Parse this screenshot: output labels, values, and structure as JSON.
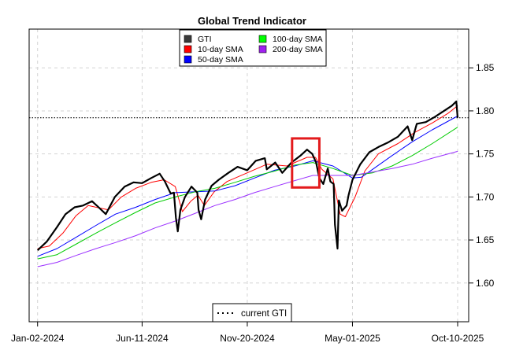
{
  "chart_data": {
    "type": "line",
    "title": "Global Trend Indicator",
    "xlabel": "",
    "ylabel": "",
    "x_range": [
      "2023-12-20",
      "2025-10-27"
    ],
    "ylim": [
      1.555,
      1.895
    ],
    "x_ticks": [
      {
        "date": "2024-01-02",
        "label": "Jan-02-2024"
      },
      {
        "date": "2024-06-11",
        "label": "Jun-11-2024"
      },
      {
        "date": "2024-11-20",
        "label": "Nov-20-2024"
      },
      {
        "date": "2025-05-01",
        "label": "May-01-2025"
      },
      {
        "date": "2025-10-10",
        "label": "Oct-10-2025"
      }
    ],
    "y_ticks": [
      {
        "value": 1.6,
        "label": "1.60"
      },
      {
        "value": 1.65,
        "label": "1.65"
      },
      {
        "value": 1.7,
        "label": "1.70"
      },
      {
        "value": 1.75,
        "label": "1.75"
      },
      {
        "value": 1.8,
        "label": "1.80"
      },
      {
        "value": 1.85,
        "label": "1.85"
      }
    ],
    "grid": true,
    "grid_style": "dashed-lightgray",
    "reference_line": {
      "value": 1.792,
      "label": "current GTI",
      "style": "dotted",
      "color": "#000000"
    },
    "highlight_box": {
      "x_start": "2025-01-28",
      "x_end": "2025-03-11",
      "y_low": 1.711,
      "y_high": 1.768,
      "color": "#e31a1c"
    },
    "legend_position": "top",
    "series": [
      {
        "name": "GTI",
        "color": "#000000",
        "legend_color": "#3a3a3a",
        "width": 2.2,
        "points": [
          [
            "2024-01-02",
            1.638
          ],
          [
            "2024-01-16",
            1.648
          ],
          [
            "2024-02-01",
            1.665
          ],
          [
            "2024-02-14",
            1.68
          ],
          [
            "2024-02-28",
            1.688
          ],
          [
            "2024-03-12",
            1.69
          ],
          [
            "2024-03-26",
            1.695
          ],
          [
            "2024-04-05",
            1.688
          ],
          [
            "2024-04-16",
            1.68
          ],
          [
            "2024-04-30",
            1.7
          ],
          [
            "2024-05-15",
            1.712
          ],
          [
            "2024-05-29",
            1.717
          ],
          [
            "2024-06-11",
            1.716
          ],
          [
            "2024-06-25",
            1.722
          ],
          [
            "2024-07-08",
            1.727
          ],
          [
            "2024-07-16",
            1.718
          ],
          [
            "2024-07-25",
            1.704
          ],
          [
            "2024-07-30",
            1.705
          ],
          [
            "2024-08-02",
            1.676
          ],
          [
            "2024-08-05",
            1.66
          ],
          [
            "2024-08-09",
            1.685
          ],
          [
            "2024-08-16",
            1.7
          ],
          [
            "2024-08-26",
            1.712
          ],
          [
            "2024-09-04",
            1.705
          ],
          [
            "2024-09-06",
            1.685
          ],
          [
            "2024-09-10",
            1.674
          ],
          [
            "2024-09-16",
            1.697
          ],
          [
            "2024-09-26",
            1.713
          ],
          [
            "2024-10-07",
            1.72
          ],
          [
            "2024-10-22",
            1.728
          ],
          [
            "2024-11-05",
            1.735
          ],
          [
            "2024-11-20",
            1.731
          ],
          [
            "2024-12-03",
            1.742
          ],
          [
            "2024-12-17",
            1.745
          ],
          [
            "2024-12-20",
            1.732
          ],
          [
            "2025-01-02",
            1.74
          ],
          [
            "2025-01-13",
            1.728
          ],
          [
            "2025-01-27",
            1.74
          ],
          [
            "2025-02-10",
            1.748
          ],
          [
            "2025-02-20",
            1.755
          ],
          [
            "2025-02-28",
            1.75
          ],
          [
            "2025-03-06",
            1.74
          ],
          [
            "2025-03-11",
            1.722
          ],
          [
            "2025-03-17",
            1.715
          ],
          [
            "2025-03-24",
            1.733
          ],
          [
            "2025-03-28",
            1.718
          ],
          [
            "2025-04-02",
            1.715
          ],
          [
            "2025-04-04",
            1.668
          ],
          [
            "2025-04-08",
            1.64
          ],
          [
            "2025-04-10",
            1.696
          ],
          [
            "2025-04-15",
            1.684
          ],
          [
            "2025-04-22",
            1.69
          ],
          [
            "2025-04-25",
            1.702
          ],
          [
            "2025-05-01",
            1.72
          ],
          [
            "2025-05-13",
            1.738
          ],
          [
            "2025-05-27",
            1.752
          ],
          [
            "2025-06-10",
            1.758
          ],
          [
            "2025-06-24",
            1.763
          ],
          [
            "2025-07-10",
            1.77
          ],
          [
            "2025-07-25",
            1.782
          ],
          [
            "2025-08-01",
            1.766
          ],
          [
            "2025-08-08",
            1.785
          ],
          [
            "2025-08-22",
            1.787
          ],
          [
            "2025-09-05",
            1.793
          ],
          [
            "2025-09-19",
            1.8
          ],
          [
            "2025-10-01",
            1.806
          ],
          [
            "2025-10-08",
            1.811
          ],
          [
            "2025-10-10",
            1.792
          ]
        ]
      },
      {
        "name": "10-day SMA",
        "color": "#ff0000",
        "legend_color": "#ff0000",
        "width": 1,
        "points": [
          [
            "2024-01-02",
            1.64
          ],
          [
            "2024-01-20",
            1.643
          ],
          [
            "2024-02-10",
            1.658
          ],
          [
            "2024-03-01",
            1.678
          ],
          [
            "2024-03-20",
            1.69
          ],
          [
            "2024-04-20",
            1.685
          ],
          [
            "2024-05-10",
            1.7
          ],
          [
            "2024-06-01",
            1.71
          ],
          [
            "2024-06-25",
            1.717
          ],
          [
            "2024-07-15",
            1.72
          ],
          [
            "2024-08-01",
            1.712
          ],
          [
            "2024-08-12",
            1.683
          ],
          [
            "2024-08-25",
            1.695
          ],
          [
            "2024-09-05",
            1.702
          ],
          [
            "2024-09-15",
            1.69
          ],
          [
            "2024-09-30",
            1.706
          ],
          [
            "2024-10-20",
            1.718
          ],
          [
            "2024-11-20",
            1.728
          ],
          [
            "2024-12-20",
            1.738
          ],
          [
            "2025-01-20",
            1.736
          ],
          [
            "2025-02-20",
            1.746
          ],
          [
            "2025-03-05",
            1.746
          ],
          [
            "2025-03-15",
            1.732
          ],
          [
            "2025-04-01",
            1.721
          ],
          [
            "2025-04-12",
            1.68
          ],
          [
            "2025-04-20",
            1.677
          ],
          [
            "2025-05-05",
            1.7
          ],
          [
            "2025-05-20",
            1.73
          ],
          [
            "2025-06-10",
            1.75
          ],
          [
            "2025-07-10",
            1.762
          ],
          [
            "2025-08-05",
            1.775
          ],
          [
            "2025-09-01",
            1.786
          ],
          [
            "2025-09-25",
            1.797
          ],
          [
            "2025-10-10",
            1.806
          ]
        ]
      },
      {
        "name": "50-day SMA",
        "color": "#0000ff",
        "legend_color": "#0000ff",
        "width": 1,
        "points": [
          [
            "2024-01-02",
            1.631
          ],
          [
            "2024-02-01",
            1.64
          ],
          [
            "2024-03-01",
            1.653
          ],
          [
            "2024-04-01",
            1.667
          ],
          [
            "2024-05-01",
            1.68
          ],
          [
            "2024-06-01",
            1.688
          ],
          [
            "2024-07-01",
            1.697
          ],
          [
            "2024-08-01",
            1.705
          ],
          [
            "2024-09-01",
            1.706
          ],
          [
            "2024-10-01",
            1.707
          ],
          [
            "2024-11-01",
            1.713
          ],
          [
            "2024-12-01",
            1.722
          ],
          [
            "2025-01-01",
            1.731
          ],
          [
            "2025-02-01",
            1.736
          ],
          [
            "2025-03-01",
            1.742
          ],
          [
            "2025-04-01",
            1.736
          ],
          [
            "2025-05-01",
            1.722
          ],
          [
            "2025-05-15",
            1.723
          ],
          [
            "2025-06-01",
            1.732
          ],
          [
            "2025-07-01",
            1.748
          ],
          [
            "2025-08-01",
            1.764
          ],
          [
            "2025-09-01",
            1.778
          ],
          [
            "2025-10-10",
            1.794
          ]
        ]
      },
      {
        "name": "100-day SMA",
        "color": "#00cc00",
        "legend_color": "#00ff00",
        "width": 1,
        "points": [
          [
            "2024-01-02",
            1.628
          ],
          [
            "2024-02-01",
            1.633
          ],
          [
            "2024-03-01",
            1.645
          ],
          [
            "2024-04-01",
            1.658
          ],
          [
            "2024-05-01",
            1.67
          ],
          [
            "2024-06-01",
            1.682
          ],
          [
            "2024-07-01",
            1.693
          ],
          [
            "2024-08-01",
            1.7
          ],
          [
            "2024-09-01",
            1.706
          ],
          [
            "2024-10-01",
            1.71
          ],
          [
            "2024-11-01",
            1.717
          ],
          [
            "2024-12-01",
            1.724
          ],
          [
            "2025-01-01",
            1.73
          ],
          [
            "2025-02-01",
            1.737
          ],
          [
            "2025-03-01",
            1.74
          ],
          [
            "2025-04-01",
            1.733
          ],
          [
            "2025-05-01",
            1.725
          ],
          [
            "2025-06-01",
            1.728
          ],
          [
            "2025-07-01",
            1.736
          ],
          [
            "2025-08-01",
            1.748
          ],
          [
            "2025-09-01",
            1.762
          ],
          [
            "2025-10-10",
            1.781
          ]
        ]
      },
      {
        "name": "200-day SMA",
        "color": "#9b30ff",
        "legend_color": "#a020f0",
        "width": 1,
        "points": [
          [
            "2024-01-02",
            1.619
          ],
          [
            "2024-02-01",
            1.624
          ],
          [
            "2024-03-01",
            1.632
          ],
          [
            "2024-04-01",
            1.64
          ],
          [
            "2024-05-01",
            1.647
          ],
          [
            "2024-06-01",
            1.655
          ],
          [
            "2024-07-01",
            1.664
          ],
          [
            "2024-08-01",
            1.672
          ],
          [
            "2024-09-01",
            1.681
          ],
          [
            "2024-10-01",
            1.69
          ],
          [
            "2024-11-01",
            1.697
          ],
          [
            "2024-12-01",
            1.705
          ],
          [
            "2025-01-01",
            1.712
          ],
          [
            "2025-02-01",
            1.719
          ],
          [
            "2025-03-01",
            1.725
          ],
          [
            "2025-04-01",
            1.725
          ],
          [
            "2025-05-01",
            1.725
          ],
          [
            "2025-06-01",
            1.729
          ],
          [
            "2025-07-01",
            1.733
          ],
          [
            "2025-08-01",
            1.738
          ],
          [
            "2025-09-01",
            1.745
          ],
          [
            "2025-10-10",
            1.753
          ]
        ]
      }
    ]
  }
}
